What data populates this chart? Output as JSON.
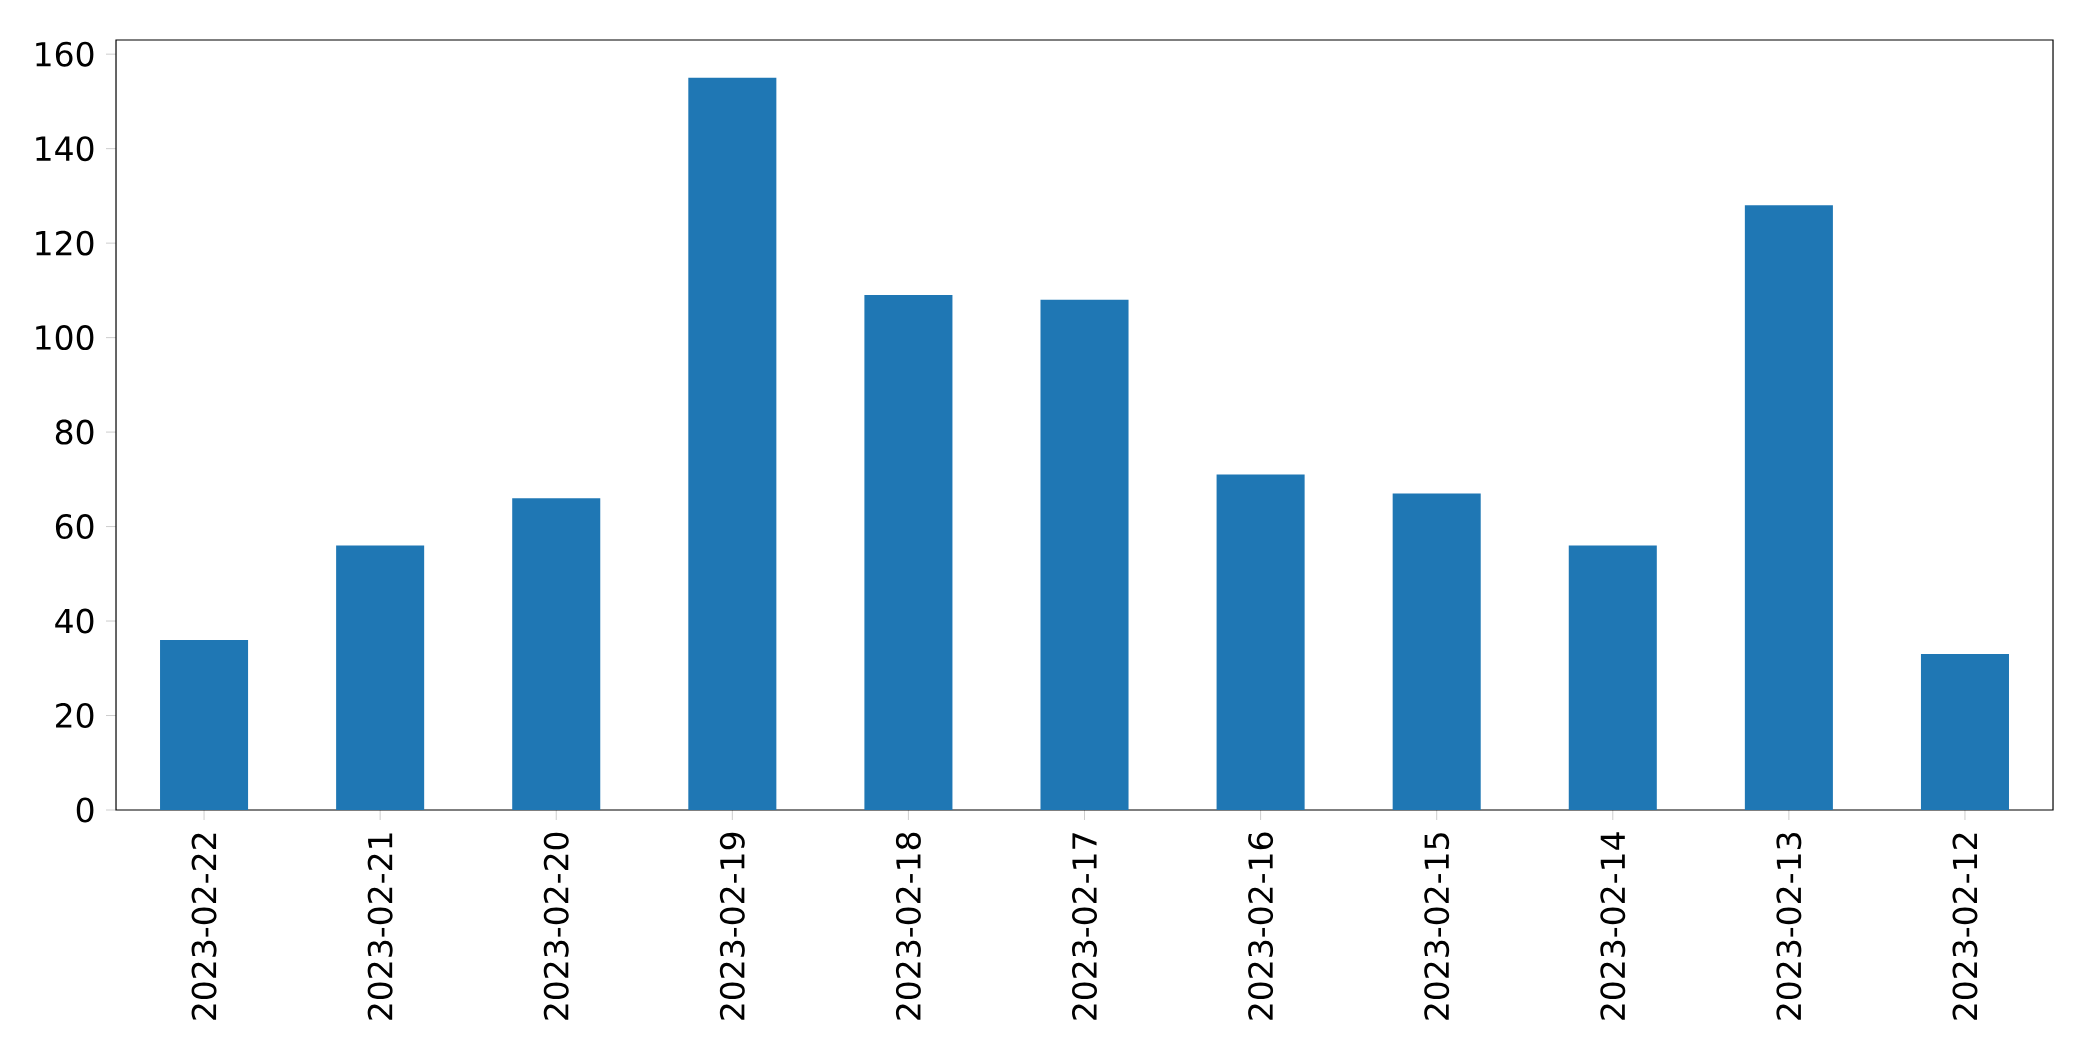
{
  "chart_data": {
    "type": "bar",
    "categories": [
      "2023-02-22",
      "2023-02-21",
      "2023-02-20",
      "2023-02-19",
      "2023-02-18",
      "2023-02-17",
      "2023-02-16",
      "2023-02-15",
      "2023-02-14",
      "2023-02-13",
      "2023-02-12"
    ],
    "values": [
      36,
      56,
      66,
      155,
      109,
      108,
      71,
      67,
      56,
      128,
      33
    ],
    "color": "#1f77b4",
    "ylim": [
      0,
      163
    ],
    "yticks": [
      0,
      20,
      40,
      60,
      80,
      100,
      120,
      140,
      160
    ],
    "grid": false
  }
}
